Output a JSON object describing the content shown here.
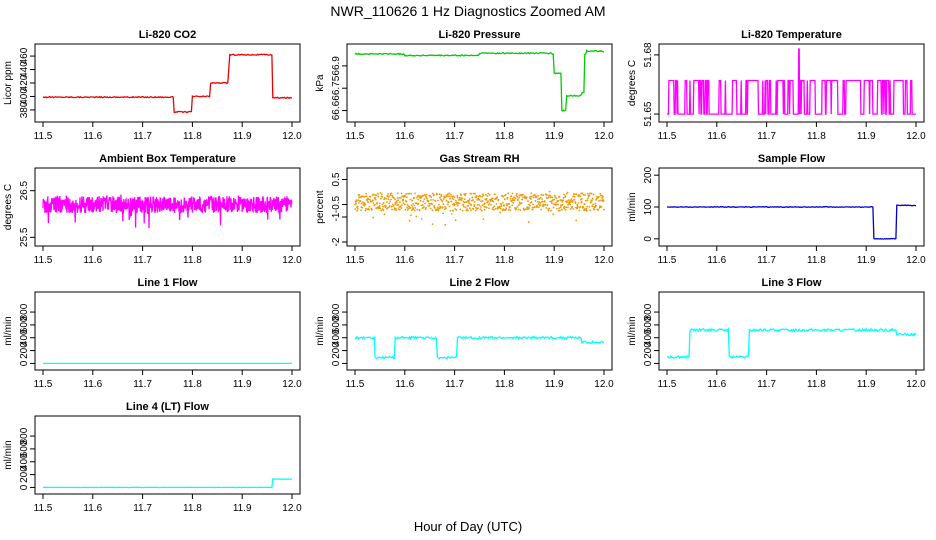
{
  "figure": {
    "title": "NWR_110626  1 Hz Diagnostics Zoomed AM",
    "xlabel": "Hour of Day (UTC)"
  },
  "chart_data": [
    {
      "type": "line",
      "title": "Li-820 CO2",
      "ylabel": "Licor ppm",
      "color": "#ee0000",
      "xlim": [
        11.5,
        12.0
      ],
      "ylim": [
        368,
        472
      ],
      "yticks": [
        380,
        400,
        420,
        440,
        460
      ],
      "xticks": [
        11.5,
        11.6,
        11.7,
        11.8,
        11.9,
        12.0
      ],
      "steps": [
        [
          11.5,
          399
        ],
        [
          11.762,
          377
        ],
        [
          11.8,
          400
        ],
        [
          11.835,
          420
        ],
        [
          11.872,
          442
        ],
        [
          11.875,
          462
        ],
        [
          11.96,
          398
        ],
        [
          12.0,
          398
        ]
      ],
      "noise": 0.8
    },
    {
      "type": "line",
      "title": "Li-820 Pressure",
      "ylabel": "kPa",
      "color": "#00cc00",
      "xlim": [
        11.5,
        12.0
      ],
      "ylim": [
        66.55,
        67.02
      ],
      "yticks": [
        66.6,
        66.75,
        66.9
      ],
      "xticks": [
        11.5,
        11.6,
        11.7,
        11.8,
        11.9,
        12.0
      ],
      "steps": [
        [
          11.5,
          66.98
        ],
        [
          11.6,
          66.97
        ],
        [
          11.75,
          66.985
        ],
        [
          11.895,
          66.98
        ],
        [
          11.9,
          66.85
        ],
        [
          11.915,
          66.6
        ],
        [
          11.925,
          66.7
        ],
        [
          11.955,
          66.72
        ],
        [
          11.96,
          66.98
        ],
        [
          11.965,
          67.0
        ],
        [
          12.0,
          66.99
        ]
      ],
      "noise": 0.004
    },
    {
      "type": "line",
      "title": "Li-820 Temperature",
      "ylabel": "degrees C",
      "color": "#ff00ff",
      "xlim": [
        11.5,
        12.0
      ],
      "ylim": [
        51.648,
        51.6835
      ],
      "yticks": [
        51.65,
        51.68
      ],
      "xticks": [
        11.5,
        11.6,
        11.7,
        11.8,
        11.9,
        12.0
      ],
      "levels": [
        51.65,
        51.667
      ],
      "spike": [
        11.765,
        51.683
      ]
    },
    {
      "type": "line",
      "title": "Ambient Box Temperature",
      "ylabel": "degrees C",
      "color": "#ff00ff",
      "xlim": [
        11.5,
        12.0
      ],
      "ylim": [
        25.4,
        26.9
      ],
      "yticks": [
        25.5,
        26.5
      ],
      "xticks": [
        11.5,
        11.6,
        11.7,
        11.8,
        11.9,
        12.0
      ],
      "center": 26.2,
      "noise": 0.18
    },
    {
      "type": "scatter",
      "title": "Gas Stream RH",
      "ylabel": "percent",
      "color": "#ee9900",
      "xlim": [
        11.5,
        12.0
      ],
      "ylim": [
        -2.0,
        0.8
      ],
      "yticks": [
        -2.0,
        -1.0,
        -0.5,
        0.5
      ],
      "xticks": [
        11.5,
        11.6,
        11.7,
        11.8,
        11.9,
        12.0
      ],
      "center": -0.4,
      "noise": 0.35
    },
    {
      "type": "line",
      "title": "Sample Flow",
      "ylabel": "ml/min",
      "color": "#0000cc",
      "xlim": [
        11.5,
        12.0
      ],
      "ylim": [
        -10,
        210
      ],
      "yticks": [
        0,
        100,
        200
      ],
      "xticks": [
        11.5,
        11.6,
        11.7,
        11.8,
        11.9,
        12.0
      ],
      "steps": [
        [
          11.5,
          100
        ],
        [
          11.915,
          0
        ],
        [
          11.96,
          105
        ],
        [
          12.0,
          105
        ]
      ],
      "noise": 1.0
    },
    {
      "type": "line",
      "title": "Line 1 Flow",
      "ylabel": "ml/min",
      "color": "#00ffff",
      "xlim": [
        11.5,
        12.0
      ],
      "ylim": [
        -40,
        1050
      ],
      "yticks": [
        0,
        200,
        400,
        600,
        800
      ],
      "xticks": [
        11.5,
        11.6,
        11.7,
        11.8,
        11.9,
        12.0
      ],
      "steps": [
        [
          11.5,
          0
        ],
        [
          12.0,
          0
        ]
      ],
      "noise": 0
    },
    {
      "type": "line",
      "title": "Line 2 Flow",
      "ylabel": "ml/min",
      "color": "#00ffff",
      "xlim": [
        11.5,
        12.0
      ],
      "ylim": [
        -40,
        1050
      ],
      "yticks": [
        0,
        200,
        400,
        600,
        800
      ],
      "xticks": [
        11.5,
        11.6,
        11.7,
        11.8,
        11.9,
        12.0
      ],
      "steps": [
        [
          11.5,
          400
        ],
        [
          11.54,
          90
        ],
        [
          11.58,
          400
        ],
        [
          11.665,
          90
        ],
        [
          11.705,
          400
        ],
        [
          11.955,
          330
        ],
        [
          12.0,
          330
        ]
      ],
      "noise": 18
    },
    {
      "type": "line",
      "title": "Line 3 Flow",
      "ylabel": "ml/min",
      "color": "#00ffff",
      "xlim": [
        11.5,
        12.0
      ],
      "ylim": [
        -40,
        1050
      ],
      "yticks": [
        0,
        200,
        400,
        600,
        800
      ],
      "xticks": [
        11.5,
        11.6,
        11.7,
        11.8,
        11.9,
        12.0
      ],
      "steps": [
        [
          11.5,
          100
        ],
        [
          11.545,
          520
        ],
        [
          11.625,
          100
        ],
        [
          11.665,
          520
        ],
        [
          11.96,
          450
        ],
        [
          12.0,
          450
        ]
      ],
      "noise": 18
    },
    {
      "type": "line",
      "title": "Line 4 (LT) Flow",
      "ylabel": "ml/min",
      "color": "#00ffff",
      "xlim": [
        11.5,
        12.0
      ],
      "ylim": [
        -40,
        1050
      ],
      "yticks": [
        0,
        200,
        400,
        600,
        800
      ],
      "xticks": [
        11.5,
        11.6,
        11.7,
        11.8,
        11.9,
        12.0
      ],
      "steps": [
        [
          11.5,
          0
        ],
        [
          11.96,
          130
        ],
        [
          12.0,
          130
        ]
      ],
      "noise": 2
    }
  ]
}
